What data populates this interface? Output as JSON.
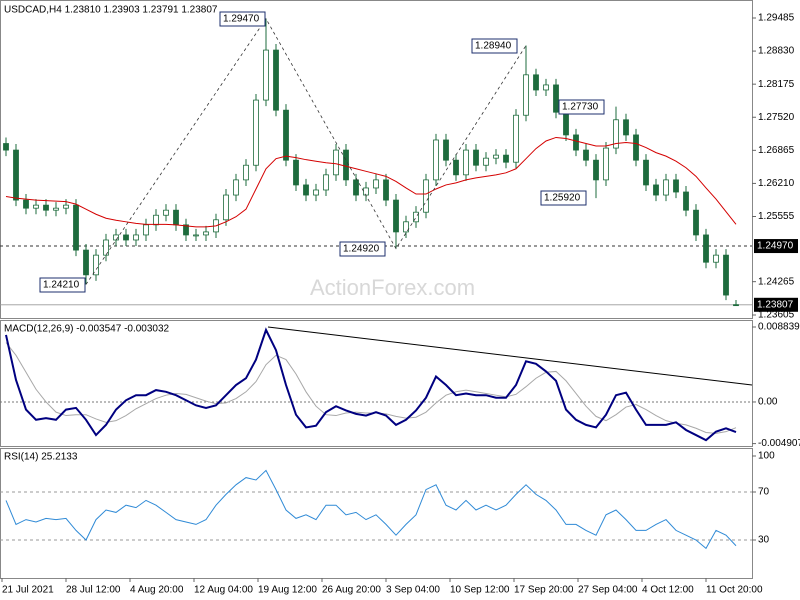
{
  "chart_data": [
    {
      "type": "candlestick",
      "title": "USDCAD,H4  1.23810 1.23903 1.23791 1.23807",
      "watermark": "ActionForex.com",
      "up_color": "#1d6b3c",
      "down_color": "#1d6b3c",
      "candles": [
        [
          1.27,
          1.2712,
          1.2675,
          1.2687
        ],
        [
          1.2687,
          1.2699,
          1.2576,
          1.2588
        ],
        [
          1.2588,
          1.26,
          1.256,
          1.2572
        ],
        [
          1.2572,
          1.259,
          1.256,
          1.2578
        ],
        [
          1.2578,
          1.259,
          1.2556,
          1.2568
        ],
        [
          1.2568,
          1.2584,
          1.2556,
          1.2572
        ],
        [
          1.2572,
          1.259,
          1.256,
          1.2578
        ],
        [
          1.2578,
          1.259,
          1.2477,
          1.2489
        ],
        [
          1.2489,
          1.2501,
          1.2421,
          1.244
        ],
        [
          1.244,
          1.2491,
          1.2428,
          1.2479
        ],
        [
          1.2479,
          1.2521,
          1.2467,
          1.2509
        ],
        [
          1.2509,
          1.2531,
          1.2497,
          1.2519
        ],
        [
          1.2519,
          1.2531,
          1.2497,
          1.2509
        ],
        [
          1.2509,
          1.2531,
          1.2497,
          1.2519
        ],
        [
          1.2519,
          1.2551,
          1.2507,
          1.2539
        ],
        [
          1.2539,
          1.257,
          1.2527,
          1.2558
        ],
        [
          1.2558,
          1.258,
          1.2546,
          1.2568
        ],
        [
          1.2568,
          1.258,
          1.2527,
          1.2539
        ],
        [
          1.2539,
          1.2551,
          1.2507,
          1.2519
        ],
        [
          1.2519,
          1.2531,
          1.2507,
          1.2519
        ],
        [
          1.2519,
          1.2537,
          1.2507,
          1.2525
        ],
        [
          1.2525,
          1.2561,
          1.2513,
          1.2549
        ],
        [
          1.2549,
          1.261,
          1.2537,
          1.2598
        ],
        [
          1.2598,
          1.264,
          1.2586,
          1.2628
        ],
        [
          1.2628,
          1.2669,
          1.2616,
          1.2657
        ],
        [
          1.2657,
          1.2798,
          1.2645,
          1.2786
        ],
        [
          1.2786,
          1.2947,
          1.2774,
          1.2885
        ],
        [
          1.2885,
          1.2897,
          1.2754,
          1.2766
        ],
        [
          1.2766,
          1.2778,
          1.2655,
          1.2667
        ],
        [
          1.2667,
          1.2679,
          1.2606,
          1.2618
        ],
        [
          1.2618,
          1.263,
          1.2586,
          1.2598
        ],
        [
          1.2598,
          1.262,
          1.2586,
          1.2608
        ],
        [
          1.2608,
          1.265,
          1.2596,
          1.2638
        ],
        [
          1.2638,
          1.2699,
          1.2626,
          1.2687
        ],
        [
          1.2687,
          1.2699,
          1.2616,
          1.2628
        ],
        [
          1.2628,
          1.264,
          1.2586,
          1.2598
        ],
        [
          1.2598,
          1.2624,
          1.2586,
          1.2612
        ],
        [
          1.2612,
          1.264,
          1.26,
          1.2628
        ],
        [
          1.2628,
          1.264,
          1.2576,
          1.2588
        ],
        [
          1.2588,
          1.26,
          1.2492,
          1.2525
        ],
        [
          1.2525,
          1.2557,
          1.2513,
          1.2545
        ],
        [
          1.2545,
          1.2576,
          1.2533,
          1.2564
        ],
        [
          1.2564,
          1.264,
          1.2552,
          1.2628
        ],
        [
          1.2628,
          1.2719,
          1.2616,
          1.2707
        ],
        [
          1.2707,
          1.2719,
          1.2655,
          1.2667
        ],
        [
          1.2667,
          1.2679,
          1.2626,
          1.2638
        ],
        [
          1.2638,
          1.2699,
          1.2626,
          1.2687
        ],
        [
          1.2687,
          1.2699,
          1.2645,
          1.2657
        ],
        [
          1.2657,
          1.2683,
          1.2645,
          1.2671
        ],
        [
          1.2671,
          1.2689,
          1.2659,
          1.2677
        ],
        [
          1.2677,
          1.2689,
          1.2651,
          1.2663
        ],
        [
          1.2663,
          1.2768,
          1.2651,
          1.2756
        ],
        [
          1.2756,
          1.2894,
          1.2744,
          1.2836
        ],
        [
          1.2836,
          1.2848,
          1.2794,
          1.2806
        ],
        [
          1.2806,
          1.2828,
          1.2794,
          1.2816
        ],
        [
          1.2816,
          1.2828,
          1.275,
          1.2762
        ],
        [
          1.2762,
          1.2774,
          1.2705,
          1.2717
        ],
        [
          1.2717,
          1.2729,
          1.2675,
          1.2687
        ],
        [
          1.2687,
          1.2699,
          1.2655,
          1.2667
        ],
        [
          1.2667,
          1.2679,
          1.2592,
          1.2628
        ],
        [
          1.2628,
          1.2703,
          1.2616,
          1.2691
        ],
        [
          1.2691,
          1.2773,
          1.2679,
          1.2747
        ],
        [
          1.2747,
          1.2759,
          1.2705,
          1.2717
        ],
        [
          1.2717,
          1.2729,
          1.2655,
          1.2667
        ],
        [
          1.2667,
          1.2679,
          1.2606,
          1.2618
        ],
        [
          1.2618,
          1.263,
          1.2586,
          1.2598
        ],
        [
          1.2598,
          1.264,
          1.2586,
          1.2628
        ],
        [
          1.2628,
          1.264,
          1.2592,
          1.2604
        ],
        [
          1.2604,
          1.2616,
          1.2556,
          1.2568
        ],
        [
          1.2568,
          1.258,
          1.2507,
          1.2519
        ],
        [
          1.2519,
          1.2531,
          1.2453,
          1.2465
        ],
        [
          1.2465,
          1.2491,
          1.2453,
          1.2479
        ],
        [
          1.2479,
          1.2491,
          1.239,
          1.24
        ],
        [
          1.2381,
          1.23903,
          1.23791,
          1.23807
        ]
      ],
      "ma": {
        "color": "#d40000",
        "values": [
          1.2595,
          1.2592,
          1.259,
          1.2588,
          1.2587,
          1.2586,
          1.2585,
          1.258,
          1.257,
          1.256,
          1.2552,
          1.2548,
          1.2545,
          1.2542,
          1.254,
          1.254,
          1.254,
          1.2539,
          1.2537,
          1.2535,
          1.2535,
          1.2537,
          1.2545,
          1.2555,
          1.257,
          1.261,
          1.265,
          1.267,
          1.2675,
          1.2672,
          1.2668,
          1.2665,
          1.2662,
          1.266,
          1.2655,
          1.265,
          1.2645,
          1.264,
          1.2635,
          1.2625,
          1.2612,
          1.26,
          1.26,
          1.261,
          1.2618,
          1.2622,
          1.2628,
          1.2632,
          1.2635,
          1.2638,
          1.2642,
          1.265,
          1.267,
          1.269,
          1.2705,
          1.2712,
          1.271,
          1.2705,
          1.27,
          1.2695,
          1.2695,
          1.27,
          1.2702,
          1.27,
          1.2692,
          1.2682,
          1.2675,
          1.2665,
          1.2652,
          1.2635,
          1.2612,
          1.259,
          1.2565,
          1.254
        ]
      },
      "ylim": [
        1.23605,
        1.29485
      ],
      "yticks": [
        1.29485,
        {
          "value": 1.2883,
          "label": "1.28830"
        },
        1.28175,
        {
          "value": 1.2752,
          "label": "1.27520"
        },
        1.26865,
        {
          "value": 1.2621,
          "label": "1.26210"
        },
        1.25555,
        1.24265,
        1.23605
      ],
      "hline": {
        "value": 1.2497,
        "label": "1.24970"
      },
      "last_price": {
        "value": 1.23807,
        "label": "1.23807"
      },
      "annotations": [
        "1.24210",
        "1.29470",
        "1.24920",
        "1.28940",
        "1.27730",
        "1.25920"
      ]
    },
    {
      "type": "macd",
      "title": "MACD(12,26,9) -0.003547 -0.003032",
      "macd": {
        "color": "#000080",
        "values": [
          0.0079,
          0.0026,
          -0.0009,
          -0.0021,
          -0.0019,
          -0.0021,
          -0.0009,
          -0.0007,
          -0.0021,
          -0.0039,
          -0.0027,
          -0.0009,
          0.0002,
          0.0008,
          0.0008,
          0.0014,
          0.0012,
          0.0008,
          0.0002,
          -0.0004,
          -0.0007,
          -0.0004,
          0.0008,
          0.002,
          0.0028,
          0.005,
          0.0085,
          0.0061,
          0.002,
          -0.0015,
          -0.003,
          -0.0028,
          -0.0012,
          -0.0005,
          -0.001,
          -0.0014,
          -0.0016,
          -0.0012,
          -0.0016,
          -0.0027,
          -0.0021,
          -0.001,
          0.0005,
          0.003,
          0.002,
          0.0008,
          0.001,
          0.0008,
          0.0008,
          0.0005,
          0.0005,
          0.002,
          0.0048,
          0.0045,
          0.0036,
          0.0025,
          -0.0009,
          -0.0021,
          -0.0027,
          -0.003,
          -0.0015,
          0.0008,
          0.0011,
          -0.0009,
          -0.0027,
          -0.0027,
          -0.0027,
          -0.0024,
          -0.0033,
          -0.0039,
          -0.0045,
          -0.0035,
          -0.0031,
          -0.003547
        ]
      },
      "signal": {
        "color": "#a8a8a8",
        "values": [
          0.007,
          0.0055,
          0.0035,
          0.0015,
          0.0,
          -0.0012,
          -0.0016,
          -0.0015,
          -0.0015,
          -0.002,
          -0.0024,
          -0.0022,
          -0.0016,
          -0.0008,
          -0.0002,
          0.0004,
          0.0008,
          0.001,
          0.0009,
          0.0005,
          0.0001,
          -0.0002,
          -0.0001,
          0.0004,
          0.0012,
          0.0024,
          0.0044,
          0.0055,
          0.005,
          0.0033,
          0.0012,
          -0.0005,
          -0.0015,
          -0.0016,
          -0.0013,
          -0.0012,
          -0.0013,
          -0.0013,
          -0.0014,
          -0.0017,
          -0.0019,
          -0.0018,
          -0.0012,
          -0.0001,
          0.0008,
          0.0012,
          0.0014,
          0.0012,
          0.001,
          0.0008,
          0.0006,
          0.0009,
          0.0018,
          0.0028,
          0.0035,
          0.0036,
          0.0025,
          0.001,
          -0.0005,
          -0.0017,
          -0.0022,
          -0.0015,
          -0.0006,
          -0.0003,
          -0.0009,
          -0.0016,
          -0.0022,
          -0.0025,
          -0.0027,
          -0.0031,
          -0.0036,
          -0.0037,
          -0.0035,
          -0.003032
        ]
      },
      "ylim": [
        -0.004907,
        0.008839
      ],
      "yticks": [
        0.008839,
        {
          "value": 0,
          "label": "0.00"
        },
        -0.004907
      ],
      "zero_line": true
    },
    {
      "type": "line",
      "title": "RSI(14) 25.2133",
      "color": "#2f8ad6",
      "values": [
        63,
        43,
        47,
        45,
        48,
        47,
        48,
        38,
        30,
        47,
        55,
        53,
        59,
        57,
        63,
        59,
        53,
        47,
        45,
        43,
        47,
        59,
        68,
        76,
        82,
        80,
        88,
        72,
        55,
        48,
        51,
        47,
        59,
        59,
        51,
        53,
        47,
        51,
        43,
        34,
        43,
        51,
        72,
        76,
        59,
        55,
        63,
        55,
        59,
        55,
        59,
        68,
        76,
        68,
        63,
        55,
        43,
        43,
        38,
        34,
        51,
        55,
        47,
        38,
        38,
        43,
        47,
        38,
        34,
        30,
        23,
        38,
        34,
        25.2133
      ],
      "ylim": [
        0,
        100
      ],
      "yticks": [
        100,
        70,
        30
      ],
      "levels": [
        70,
        30
      ],
      "x_labels": [
        "21 Jul 2021",
        "28 Jul 12:00",
        "4 Aug 20:00",
        "12 Aug 04:00",
        "19 Aug 12:00",
        "26 Aug 20:00",
        "3 Sep 04:00",
        "10 Sep 12:00",
        "17 Sep 20:00",
        "27 Sep 04:00",
        "4 Oct 12:00",
        "11 Oct 20:00"
      ]
    }
  ]
}
